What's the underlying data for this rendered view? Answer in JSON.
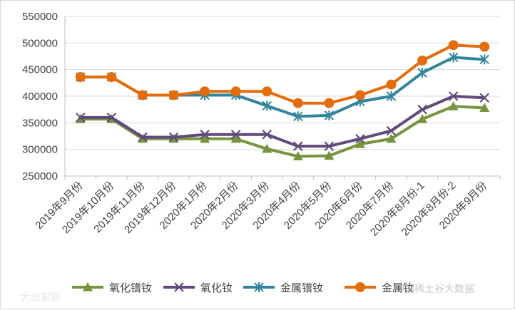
{
  "chart_data": {
    "type": "line",
    "title": "",
    "xlabel": "",
    "ylabel": "",
    "ylim": [
      250000,
      550000
    ],
    "ytick_step": 50000,
    "grid": true,
    "legend_position": "bottom",
    "categories": [
      "2019年9月份",
      "2019年10月份",
      "2019年11月份",
      "2019年12月份",
      "2020年1月份",
      "2020年2月份",
      "2020年3月份",
      "2020年4月份",
      "2020年5月份",
      "2020年6月份",
      "2020年7月份",
      "2020年8月份-1",
      "2020年8月份-2",
      "2020年9月份"
    ],
    "series": [
      {
        "name": "氧化镨钕",
        "marker": "triangle",
        "color": "#77933c",
        "values": [
          357000,
          357000,
          320000,
          320000,
          320000,
          320000,
          301000,
          287000,
          288000,
          310000,
          320000,
          357000,
          381000,
          378000
        ]
      },
      {
        "name": "氧化钕",
        "marker": "x",
        "color": "#604a7b",
        "values": [
          360000,
          360000,
          323000,
          323000,
          328000,
          328000,
          328000,
          306000,
          306000,
          320000,
          335000,
          375000,
          400000,
          397000
        ]
      },
      {
        "name": "金属镨钕",
        "marker": "star",
        "color": "#31859c",
        "values": [
          436000,
          436000,
          402000,
          402000,
          402000,
          402000,
          382000,
          362000,
          364000,
          390000,
          400000,
          444000,
          473000,
          469000
        ]
      },
      {
        "name": "金属钕",
        "marker": "circle",
        "color": "#e46c0a",
        "values": [
          436000,
          436000,
          402000,
          402000,
          409000,
          409000,
          409000,
          387000,
          387000,
          402000,
          422000,
          467000,
          496000,
          493000
        ]
      }
    ]
  },
  "watermarks": {
    "source_left": "大啟窗聊",
    "source_right": "中国稀土谷大数据"
  }
}
